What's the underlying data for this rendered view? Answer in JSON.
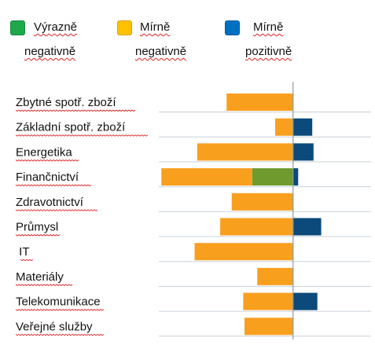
{
  "legend": [
    {
      "line1": "Výrazně",
      "line2": "negativně",
      "color": "#1ea84c"
    },
    {
      "line1": "Mírně",
      "line2": "negativně",
      "color": "#ffc000"
    },
    {
      "line1": "Mírně",
      "line2": "pozitivně",
      "color": "#0070c0"
    }
  ],
  "chart_data": {
    "type": "bar",
    "orientation": "horizontal",
    "stacked": true,
    "categories": [
      "Zbytné spotř. zboží",
      "Základní spotř. zboží",
      "Energetika",
      "Finančnictví",
      "Zdravotnictví",
      "Průmysl",
      " IT",
      "Materiály",
      "Telekomunikace",
      "Veřejné služby"
    ],
    "series": [
      {
        "name": "Výrazně negativně",
        "color": "#6f9a2e",
        "values": [
          0,
          0,
          0,
          -3.2,
          0,
          0,
          0,
          0,
          0,
          0
        ]
      },
      {
        "name": "Mírně negativně",
        "color": "#f99f1e",
        "values": [
          -5.2,
          -1.4,
          -7.5,
          -7.1,
          -4.8,
          -5.7,
          -7.7,
          -2.8,
          -3.9,
          -3.8
        ]
      },
      {
        "name": "Mírně pozitivně",
        "color": "#0b4a7a",
        "values": [
          0,
          1.5,
          1.6,
          0.4,
          0,
          2.2,
          0,
          0,
          1.9,
          0
        ]
      }
    ],
    "xlim": [
      -10.5,
      6.1
    ],
    "grid": true,
    "legend_position": "top"
  }
}
